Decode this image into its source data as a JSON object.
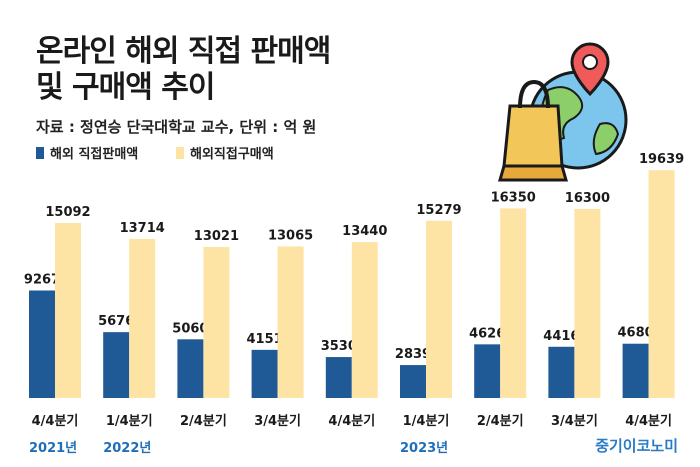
{
  "title_line1": "온라인 해외 직접 판매액",
  "title_line2": "및 구매액 추이",
  "source": "자료 : 정연승 단국대학교 교수, 단위 : 억 원",
  "brand": "중기이코노미",
  "year_labels": [
    {
      "text": "2021년",
      "index": 0
    },
    {
      "text": "2022년",
      "index": 1
    },
    {
      "text": "2023년",
      "index": 5
    }
  ],
  "chart_data": {
    "type": "bar",
    "categories": [
      "4/4분기",
      "1/4분기",
      "2/4분기",
      "3/4분기",
      "4/4분기",
      "1/4분기",
      "2/4분기",
      "3/4분기",
      "4/4분기"
    ],
    "series": [
      {
        "name": "해외 직접판매액",
        "color": "#1f5a96",
        "values": [
          9267,
          5676,
          5060,
          4151,
          3530,
          2839,
          4626,
          4416,
          4680
        ]
      },
      {
        "name": "해외직접구매액",
        "color": "#fde4a4",
        "values": [
          15092,
          13714,
          13021,
          13065,
          13440,
          15279,
          16350,
          16300,
          19639
        ]
      }
    ],
    "ylim": [
      0,
      20000
    ],
    "legend": "top-left",
    "grid": false
  }
}
